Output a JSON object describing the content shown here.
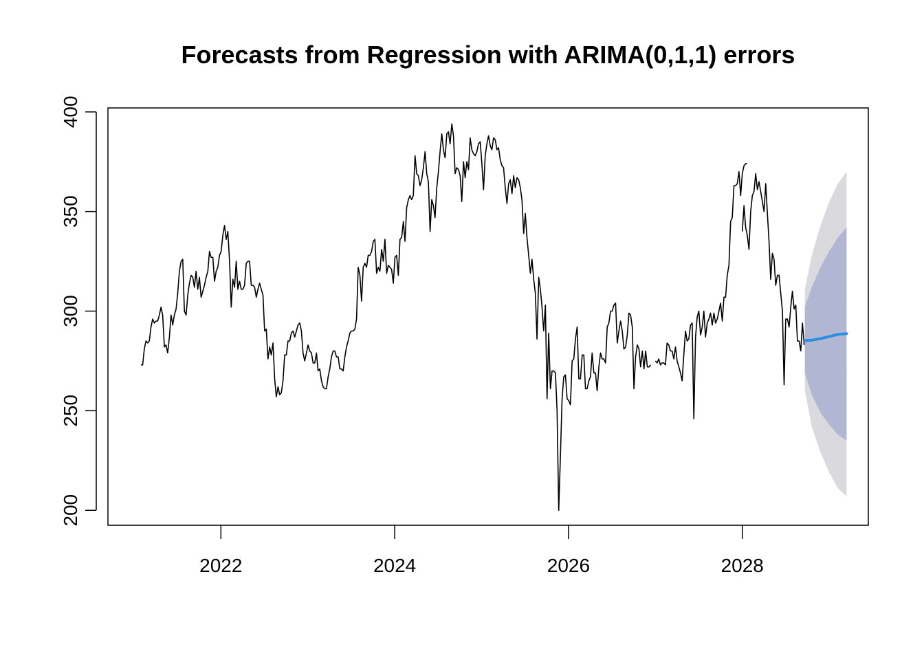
{
  "chart_data": {
    "type": "line",
    "title": "Forecasts from Regression with ARIMA(0,1,1) errors",
    "xlabel": "",
    "ylabel": "",
    "xlim": [
      2020.7,
      2029.45
    ],
    "ylim": [
      192.5,
      402
    ],
    "x_ticks": [
      2022,
      2024,
      2026,
      2028
    ],
    "x_tick_labels": [
      "2022",
      "2024",
      "2026",
      "2028"
    ],
    "y_ticks": [
      200,
      250,
      300,
      350,
      400
    ],
    "y_tick_labels": [
      "200",
      "250",
      "300",
      "350",
      "400"
    ],
    "grid": false,
    "legend": "none",
    "colors": {
      "history": "#000000",
      "forecast": "#2b8fe0",
      "pi80": "#b1b6d3",
      "pi95": "#dadade"
    },
    "history": {
      "start": 2021.08,
      "frequency": 52,
      "segments": [
        [
          273,
          273,
          281,
          285,
          284,
          285,
          292,
          296,
          294,
          295,
          295,
          298,
          302,
          298,
          282,
          283,
          279,
          287,
          298,
          293,
          298,
          301,
          309,
          320,
          325,
          326,
          300,
          298,
          308,
          314,
          318,
          317,
          312,
          320,
          311,
          317,
          307,
          310,
          313,
          317,
          320,
          330,
          327,
          327,
          315,
          320,
          322,
          328,
          330,
          338,
          343,
          336,
          340,
          325,
          302,
          316,
          312,
          325,
          311,
          315,
          311,
          311,
          313,
          324,
          325,
          325,
          313,
          313,
          312,
          307,
          311,
          314,
          311,
          308,
          290,
          291,
          276,
          282,
          278,
          284,
          266,
          257,
          262,
          258,
          259,
          265,
          278,
          278,
          285,
          285,
          289,
          290,
          287,
          290,
          293,
          294,
          290,
          279,
          275,
          279,
          283,
          280,
          279,
          274,
          274,
          279,
          270,
          271,
          265,
          262,
          261,
          261,
          267,
          271,
          277,
          280,
          280,
          277,
          277,
          271,
          271,
          270,
          277,
          282,
          285,
          289,
          290,
          290,
          291,
          296,
          322,
          318,
          305,
          322,
          324,
          322,
          328,
          328,
          330,
          335,
          336,
          319,
          322,
          320,
          331,
          325,
          336,
          319,
          323,
          322,
          321,
          314,
          327,
          328,
          318,
          336,
          337,
          345,
          335,
          352,
          356,
          358,
          356,
          358,
          378,
          369,
          368,
          363,
          366,
          372,
          380,
          369,
          365,
          340,
          356,
          353,
          347,
          362,
          370,
          380,
          389,
          381,
          377,
          389,
          390,
          384,
          394,
          388,
          369,
          372,
          371,
          368,
          355,
          375,
          367,
          375,
          371,
          387,
          381,
          379,
          378,
          380,
          384,
          385,
          374,
          361,
          378,
          384,
          388,
          383,
          381,
          387,
          386,
          381,
          382,
          376,
          373,
          372,
          362,
          354,
          364,
          366,
          359,
          368,
          362,
          367,
          366,
          362,
          356,
          339,
          349,
          337,
          328,
          319,
          326,
          316,
          309,
          286,
          317,
          311,
          302,
          290,
          303,
          256,
          289,
          261,
          270,
          270,
          269,
          250,
          200,
          228,
          256,
          267,
          268,
          256,
          255,
          253,
          275,
          276,
          286,
          292,
          266,
          266,
          278,
          278,
          261,
          261,
          265,
          267,
          279,
          269,
          269,
          260,
          272,
          279,
          276,
          276,
          274,
          292,
          294,
          300,
          300,
          303,
          304,
          284,
          290,
          295,
          290,
          281,
          282,
          288,
          299,
          298,
          292,
          261,
          277,
          283,
          281,
          272,
          280,
          271,
          280,
          272,
          272,
          273
        ],
        [
          275,
          274,
          276,
          273,
          274,
          274,
          273,
          284,
          283,
          280,
          280,
          276,
          282,
          275,
          272,
          269,
          265,
          278,
          290,
          285,
          286,
          293,
          294,
          246,
          287,
          297,
          300,
          288,
          292,
          300,
          287,
          294,
          296,
          299,
          293,
          299,
          294,
          296,
          300,
          304,
          295,
          307,
          307,
          318,
          323,
          345,
          347,
          363,
          363,
          364,
          370,
          358,
          369,
          373,
          374,
          374
        ],
        [
          340,
          353,
          342,
          338,
          331,
          350,
          358,
          360,
          369,
          361,
          365,
          360,
          355,
          350,
          364,
          349,
          335,
          316,
          329,
          326,
          313,
          318,
          318,
          309,
          300,
          263,
          296,
          296,
          292,
          302,
          310,
          301,
          303,
          285,
          285,
          280,
          294,
          283
        ]
      ],
      "segment_starts": [
        2021.08,
        2027.0,
        2028.0
      ]
    },
    "forecast": {
      "x": [
        2028.72,
        2028.8,
        2028.9,
        2029.0,
        2029.1,
        2029.2
      ],
      "mean": [
        285.2,
        285.4,
        286.2,
        287.2,
        288.3,
        288.7
      ],
      "lo80": [
        269,
        258,
        249,
        243,
        238,
        235
      ],
      "hi80": [
        302,
        312,
        322,
        330,
        337,
        342
      ],
      "lo95": [
        260,
        242,
        229,
        219,
        211,
        207
      ],
      "hi95": [
        311,
        328,
        343,
        355,
        364,
        370
      ]
    }
  }
}
